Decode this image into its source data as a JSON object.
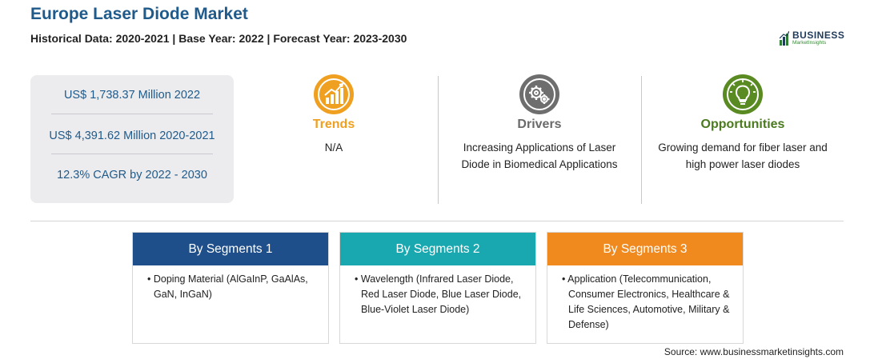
{
  "header": {
    "title": "Europe Laser Diode Market",
    "subtitle": "Historical Data: 2020-2021 | Base Year: 2022 | Forecast Year: 2023-2030"
  },
  "logo": {
    "main": "BUSINESS",
    "sub": "MarketInsights",
    "icon": "bar-chart-logo-icon"
  },
  "stats": [
    "US$ 1,738.37 Million 2022",
    "US$ 4,391.62 Million 2020-2021",
    "12.3% CAGR by 2022 - 2030"
  ],
  "trends": {
    "label": "Trends",
    "text": "N/A",
    "icon": "growth-chart-icon",
    "color": "#f0a020"
  },
  "drivers": {
    "label": "Drivers",
    "line1": "Increasing Applications of Laser",
    "line2": "Diode in Biomedical Applications",
    "icon": "gears-icon",
    "color": "#6a6a6a"
  },
  "opportunities": {
    "label": "Opportunities",
    "line1": "Growing demand for fiber laser and",
    "line2": "high power laser diodes",
    "icon": "lightbulb-icon",
    "color": "#4a7a1e"
  },
  "segments": [
    {
      "title": "By Segments 1",
      "items": [
        "Doping Material (AlGaInP, GaAlAs, GaN, InGaN)"
      ],
      "color": "#1f4f8a"
    },
    {
      "title": "By Segments 2",
      "items": [
        "Wavelength (Infrared Laser Diode, Red Laser Diode, Blue Laser Diode, Blue-Violet Laser Diode)"
      ],
      "color": "#1aa8b0"
    },
    {
      "title": "By Segments 3",
      "items": [
        "Application (Telecommunication, Consumer Electronics, Healthcare & Life Sciences, Automotive, Military & Defense)"
      ],
      "color": "#f08a1e"
    }
  ],
  "source": "Source: www.businessmarketinsights.com"
}
